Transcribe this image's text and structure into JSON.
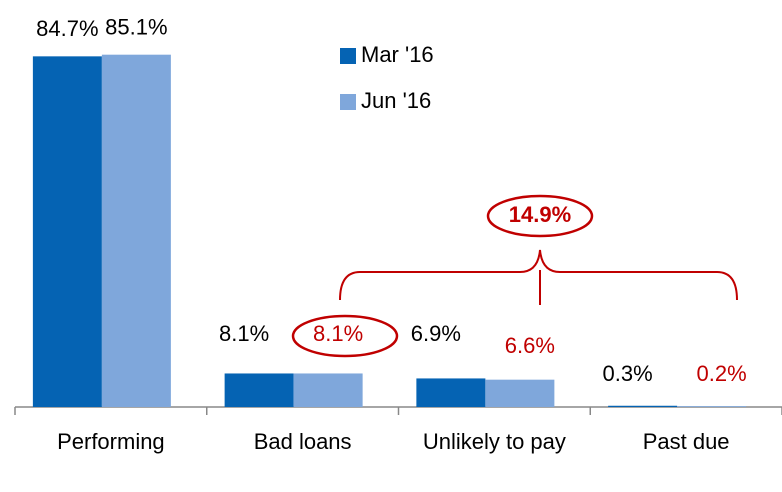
{
  "chart_data": {
    "type": "bar",
    "categories": [
      "Performing",
      "Bad loans",
      "Unlikely to pay",
      "Past due"
    ],
    "series": [
      {
        "name": "Mar '16",
        "color": "#0563b3",
        "values": [
          84.7,
          8.1,
          6.9,
          0.3
        ],
        "value_labels": [
          "84.7%",
          "8.1%",
          "6.9%",
          "0.3%"
        ]
      },
      {
        "name": "Jun '16",
        "color": "#7fa7db",
        "values": [
          85.1,
          8.1,
          6.6,
          0.2
        ],
        "value_labels": [
          "85.1%",
          "8.1%",
          "6.6%",
          "0.2%"
        ]
      }
    ],
    "annotation": "14.9%"
  }
}
